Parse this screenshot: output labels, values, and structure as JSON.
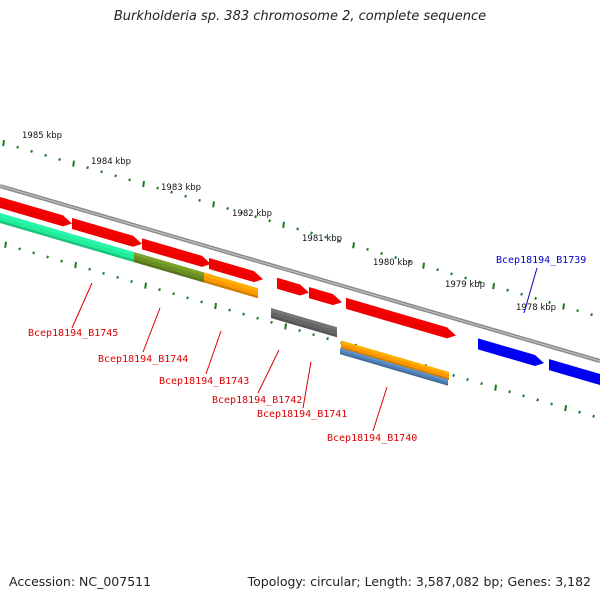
{
  "title": "Burkholderia sp. 383 chromosome 2, complete sequence",
  "footer": {
    "accession": "Accession: NC_007511",
    "summary": "Topology: circular; Length: 3,587,082 bp; Genes: 3,182"
  },
  "colors": {
    "backbone": "#8a8a8a",
    "tick": "#1a7a1a",
    "gene_red": "#ee0000",
    "gene_blue": "#0000ee",
    "label_red": "#dd0000",
    "label_blue": "#0000cc",
    "cds_green": "#22ee99",
    "cds_olive": "#6b8e23",
    "cds_orange": "#ff9900",
    "cds_gray": "#666666",
    "cds_steel": "#4f7fb5"
  },
  "kbp_labels": [
    "1985 kbp",
    "1984 kbp",
    "1983 kbp",
    "1982 kbp",
    "1981 kbp",
    "1980 kbp",
    "1979 kbp",
    "1978 kbp"
  ],
  "gene_labels": [
    {
      "text": "Bcep18194_B1745",
      "color": "red"
    },
    {
      "text": "Bcep18194_B1744",
      "color": "red"
    },
    {
      "text": "Bcep18194_B1743",
      "color": "red"
    },
    {
      "text": "Bcep18194_B1742",
      "color": "red"
    },
    {
      "text": "Bcep18194_B1741",
      "color": "red"
    },
    {
      "text": "Bcep18194_B1740",
      "color": "red"
    },
    {
      "text": "Bcep18194_B1739",
      "color": "blue"
    }
  ]
}
